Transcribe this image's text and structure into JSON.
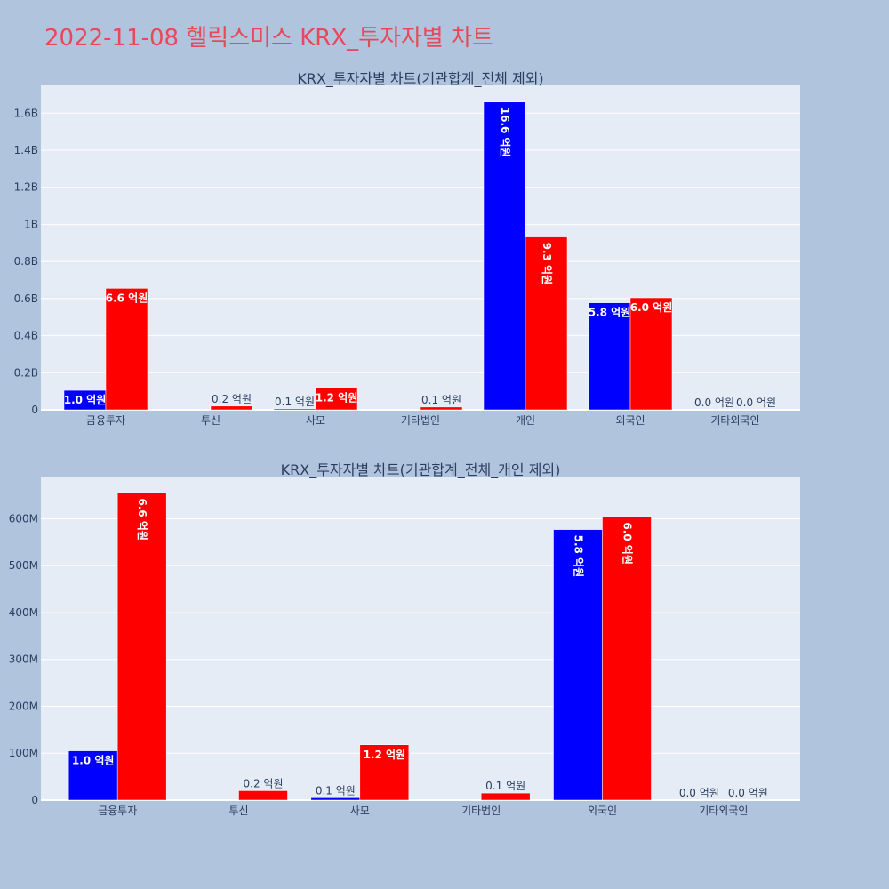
{
  "title": "2022-11-08 헬릭스미스 KRX_투자자별 차트",
  "colors": {
    "series_a": "#0000ff",
    "series_b": "#ff0000",
    "plot_bg": "#e5ecf6",
    "paper_bg": "#b0c4de",
    "title": "#e8495a"
  },
  "chart_data": [
    {
      "type": "bar",
      "title": "KRX_투자자별 차트(기관합계_전체 제외)",
      "categories": [
        "금융투자",
        "투신",
        "사모",
        "기타법인",
        "개인",
        "외국인",
        "기타외국인"
      ],
      "series": [
        {
          "values": [
            105000000,
            0,
            5000000,
            0,
            1660000000,
            577000000,
            0
          ],
          "labels": [
            "1.0 억원",
            "",
            "0.1 억원",
            "",
            "16.6 억원",
            "5.8 억원",
            "0.0 억원"
          ]
        },
        {
          "values": [
            655000000,
            20000000,
            118000000,
            15000000,
            932000000,
            604000000,
            0
          ],
          "labels": [
            "6.6 억원",
            "0.2 억원",
            "1.2 억원",
            "0.1 억원",
            "9.3 억원",
            "6.0 억원",
            "0.0 억원"
          ]
        }
      ],
      "ylim": [
        0,
        1750000000
      ],
      "yticks": [
        0,
        200000000,
        400000000,
        600000000,
        800000000,
        1000000000,
        1200000000,
        1400000000,
        1600000000
      ],
      "ytick_labels": [
        "0",
        "0.2B",
        "0.4B",
        "0.6B",
        "0.8B",
        "1B",
        "1.2B",
        "1.4B",
        "1.6B"
      ],
      "grid": true
    },
    {
      "type": "bar",
      "title": "KRX_투자자별 차트(기관합계_전체_개인 제외)",
      "categories": [
        "금융투자",
        "투신",
        "사모",
        "기타법인",
        "외국인",
        "기타외국인"
      ],
      "series": [
        {
          "values": [
            105000000,
            0,
            5000000,
            0,
            577000000,
            0
          ],
          "labels": [
            "1.0 억원",
            "",
            "0.1 억원",
            "",
            "5.8 억원",
            "0.0 억원"
          ]
        },
        {
          "values": [
            655000000,
            20000000,
            118000000,
            15000000,
            604000000,
            0
          ],
          "labels": [
            "6.6 억원",
            "0.2 억원",
            "1.2 억원",
            "0.1 억원",
            "6.0 억원",
            "0.0 억원"
          ]
        }
      ],
      "ylim": [
        0,
        690000000
      ],
      "yticks": [
        0,
        100000000,
        200000000,
        300000000,
        400000000,
        500000000,
        600000000
      ],
      "ytick_labels": [
        "0",
        "100M",
        "200M",
        "300M",
        "400M",
        "500M",
        "600M"
      ],
      "grid": true
    }
  ]
}
